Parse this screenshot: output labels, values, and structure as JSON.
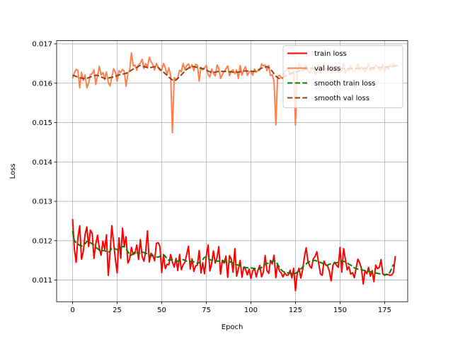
{
  "chart_data": {
    "type": "line",
    "title": "",
    "xlabel": "Epoch",
    "ylabel": "Loss",
    "xlim": [
      -8.95,
      187.95
    ],
    "ylim": [
      0.01045,
      0.01708
    ],
    "xticks": [
      0,
      25,
      50,
      75,
      100,
      125,
      150,
      175
    ],
    "xtick_labels": [
      "0",
      "25",
      "50",
      "75",
      "100",
      "125",
      "150",
      "175"
    ],
    "yticks": [
      0.011,
      0.012,
      0.013,
      0.014,
      0.015,
      0.016,
      0.017
    ],
    "ytick_labels": [
      "0.011",
      "0.012",
      "0.013",
      "0.014",
      "0.015",
      "0.016",
      "0.017"
    ],
    "grid": true,
    "legend_position": "upper right",
    "series": [
      {
        "name": "train loss",
        "color": "#ff0000",
        "style": "solid",
        "x_start": 0,
        "x_step": 1,
        "values": [
          0.01255,
          0.01179,
          0.01145,
          0.01208,
          0.01238,
          0.01153,
          0.01172,
          0.01216,
          0.01235,
          0.01185,
          0.01227,
          0.01218,
          0.01155,
          0.01191,
          0.01214,
          0.01181,
          0.01163,
          0.01199,
          0.01178,
          0.01215,
          0.01112,
          0.01167,
          0.01238,
          0.01195,
          0.01153,
          0.01118,
          0.01207,
          0.01155,
          0.01232,
          0.01186,
          0.0121,
          0.01143,
          0.01153,
          0.01183,
          0.01165,
          0.01168,
          0.01189,
          0.01152,
          0.01203,
          0.0116,
          0.01148,
          0.01173,
          0.01225,
          0.01146,
          0.01168,
          0.01163,
          0.01149,
          0.01193,
          0.01195,
          0.01185,
          0.01119,
          0.01164,
          0.01129,
          0.0114,
          0.01139,
          0.01165,
          0.01145,
          0.01133,
          0.01155,
          0.01124,
          0.01165,
          0.01126,
          0.01139,
          0.01145,
          0.01165,
          0.01186,
          0.01128,
          0.01154,
          0.01122,
          0.01136,
          0.01138,
          0.01175,
          0.01118,
          0.01144,
          0.01116,
          0.01161,
          0.01189,
          0.01123,
          0.01141,
          0.01174,
          0.01143,
          0.01157,
          0.01185,
          0.01115,
          0.0115,
          0.01143,
          0.01161,
          0.01107,
          0.01162,
          0.01153,
          0.0112,
          0.0118,
          0.0111,
          0.01128,
          0.0115,
          0.01107,
          0.01133,
          0.01128,
          0.01113,
          0.01128,
          0.01104,
          0.01123,
          0.0113,
          0.01108,
          0.01126,
          0.01137,
          0.01108,
          0.0112,
          0.01162,
          0.01124,
          0.01117,
          0.0115,
          0.01141,
          0.01163,
          0.01106,
          0.01141,
          0.01123,
          0.01118,
          0.01108,
          0.01118,
          0.01112,
          0.01113,
          0.01125,
          0.01105,
          0.0113,
          0.01073,
          0.01117,
          0.0113,
          0.01105,
          0.01125,
          0.01158,
          0.01182,
          0.01148,
          0.01136,
          0.0113,
          0.01154,
          0.0116,
          0.01172,
          0.01143,
          0.01116,
          0.01112,
          0.01148,
          0.01138,
          0.01136,
          0.01122,
          0.01098,
          0.01137,
          0.01145,
          0.01138,
          0.01132,
          0.01183,
          0.0112,
          0.0118,
          0.01153,
          0.01126,
          0.01134,
          0.01115,
          0.01119,
          0.01106,
          0.0113,
          0.01153,
          0.01144,
          0.0113,
          0.0109,
          0.01124,
          0.01116,
          0.01132,
          0.0111,
          0.01124,
          0.01096,
          0.01138,
          0.01129,
          0.01132,
          0.01152,
          0.01116,
          0.01112,
          0.01115,
          0.01114,
          0.01112,
          0.01113,
          0.0112,
          0.01161
        ]
      },
      {
        "name": "val loss",
        "color": "#ff7f50",
        "style": "solid",
        "x_start": 0,
        "x_step": 1,
        "values": [
          0.01612,
          0.01626,
          0.01635,
          0.01633,
          0.01588,
          0.01628,
          0.01607,
          0.01621,
          0.01588,
          0.016,
          0.01622,
          0.01624,
          0.01634,
          0.01597,
          0.01618,
          0.01643,
          0.01621,
          0.01627,
          0.01609,
          0.01629,
          0.01603,
          0.01593,
          0.01615,
          0.01637,
          0.01628,
          0.01605,
          0.01632,
          0.01627,
          0.01635,
          0.0163,
          0.01592,
          0.01625,
          0.01632,
          0.01677,
          0.01644,
          0.01646,
          0.01633,
          0.01647,
          0.01651,
          0.01661,
          0.01637,
          0.0165,
          0.01639,
          0.01666,
          0.01655,
          0.01647,
          0.01633,
          0.0165,
          0.0164,
          0.01632,
          0.01634,
          0.0165,
          0.01639,
          0.01622,
          0.01639,
          0.0162,
          0.01474,
          0.01614,
          0.0161,
          0.01613,
          0.01633,
          0.01629,
          0.0165,
          0.01634,
          0.01645,
          0.01649,
          0.01638,
          0.01647,
          0.01632,
          0.01648,
          0.01646,
          0.01605,
          0.0164,
          0.01634,
          0.01639,
          0.01645,
          0.01621,
          0.01616,
          0.01636,
          0.01626,
          0.01618,
          0.01646,
          0.01638,
          0.01612,
          0.01622,
          0.0163,
          0.01636,
          0.01644,
          0.01619,
          0.01631,
          0.01634,
          0.01624,
          0.01634,
          0.01612,
          0.01645,
          0.0162,
          0.01634,
          0.01642,
          0.0162,
          0.01628,
          0.01632,
          0.0162,
          0.01636,
          0.01628,
          0.01632,
          0.01633,
          0.01649,
          0.01644,
          0.01646,
          0.01632,
          0.01645,
          0.01619,
          0.01622,
          0.01604,
          0.01494,
          0.01617,
          0.0162,
          0.01614,
          0.01611,
          0.0163,
          0.01633,
          0.01636,
          0.01621,
          0.01626,
          0.0163,
          0.01494,
          0.01622,
          0.01651,
          0.0164,
          0.0163,
          0.01634,
          0.01646,
          0.01631,
          0.01625,
          0.01637,
          0.01642,
          0.01623,
          0.01628,
          0.01647,
          0.01626,
          0.01639,
          0.0165,
          0.0163,
          0.01632,
          0.01641,
          0.01636,
          0.01628,
          0.01632,
          0.01645,
          0.01631,
          0.01627,
          0.01633,
          0.01651,
          0.01626,
          0.01637,
          0.01632,
          0.01645,
          0.01632,
          0.0163,
          0.01634,
          0.01649,
          0.01633,
          0.01641,
          0.01635,
          0.01629,
          0.01637,
          0.0165,
          0.01632,
          0.0164,
          0.01633,
          0.01647,
          0.01642,
          0.01635,
          0.01633,
          0.01648,
          0.0163,
          0.01643,
          0.01635,
          0.01647,
          0.0164,
          0.0165,
          0.01648
        ]
      },
      {
        "name": "smooth train loss",
        "color": "#008000",
        "style": "dashed",
        "x_start": 0,
        "x_step": 1,
        "values": [
          0.01225,
          0.012,
          0.01195,
          0.01192,
          0.01188,
          0.01186,
          0.0119,
          0.01192,
          0.01198,
          0.01199,
          0.01195,
          0.01192,
          0.01188,
          0.01183,
          0.0118,
          0.01176,
          0.01173,
          0.01175,
          0.01175,
          0.01172,
          0.0117,
          0.01174,
          0.0118,
          0.01182,
          0.01179,
          0.01177,
          0.01181,
          0.01183,
          0.01185,
          0.01185,
          0.0118,
          0.01172,
          0.01165,
          0.01163,
          0.01168,
          0.01172,
          0.0117,
          0.01165,
          0.0117,
          0.01171,
          0.0117,
          0.01168,
          0.01167,
          0.01163,
          0.01162,
          0.01161,
          0.0116,
          0.01159,
          0.01158,
          0.0116,
          0.01163,
          0.01165,
          0.0116,
          0.01155,
          0.0115,
          0.01151,
          0.01152,
          0.0115,
          0.01149,
          0.01148,
          0.0115,
          0.01151,
          0.01152,
          0.0115,
          0.01148,
          0.01147,
          0.01147,
          0.01148,
          0.01146,
          0.01145,
          0.01142,
          0.01144,
          0.01148,
          0.01152,
          0.01158,
          0.01158,
          0.01155,
          0.01152,
          0.0115,
          0.01152,
          0.0115,
          0.01148,
          0.01148,
          0.01149,
          0.0115,
          0.01148,
          0.01146,
          0.01148,
          0.01147,
          0.01145,
          0.01143,
          0.01141,
          0.01139,
          0.01138,
          0.01137,
          0.01135,
          0.01133,
          0.01132,
          0.01131,
          0.01131,
          0.01131,
          0.0113,
          0.0113,
          0.01128,
          0.01127,
          0.01128,
          0.01132,
          0.01136,
          0.0114,
          0.01142,
          0.01143,
          0.01145,
          0.01148,
          0.01149,
          0.01148,
          0.0114,
          0.01132,
          0.01126,
          0.01122,
          0.0112,
          0.01119,
          0.01118,
          0.01117,
          0.01116,
          0.01116,
          0.01117,
          0.0112,
          0.01123,
          0.01128,
          0.01133,
          0.01138,
          0.01141,
          0.01145,
          0.01147,
          0.01149,
          0.0115,
          0.0115,
          0.01148,
          0.01146,
          0.01145,
          0.01143,
          0.0114,
          0.01138,
          0.01138,
          0.0114,
          0.01142,
          0.01143,
          0.01144,
          0.01144,
          0.01145,
          0.01146,
          0.01148,
          0.01148,
          0.01146,
          0.01144,
          0.0114,
          0.01138,
          0.01135,
          0.01131,
          0.01129,
          0.01128,
          0.01127,
          0.01126,
          0.01125,
          0.01124,
          0.01123,
          0.01122,
          0.01121,
          0.0112,
          0.01119,
          0.01118,
          0.01117,
          0.01116,
          0.01116,
          0.01115,
          0.01114,
          0.01114,
          0.01113,
          0.0112,
          0.0113,
          0.0114
        ]
      },
      {
        "name": "smooth val loss",
        "color": "#8b4513",
        "style": "dashed",
        "x_start": 0,
        "x_step": 1,
        "values": [
          0.0162,
          0.01619,
          0.01617,
          0.01616,
          0.01614,
          0.01613,
          0.01612,
          0.01611,
          0.01612,
          0.01614,
          0.01616,
          0.01617,
          0.01619,
          0.0162,
          0.0162,
          0.01618,
          0.01616,
          0.01614,
          0.01612,
          0.01613,
          0.01613,
          0.01614,
          0.01615,
          0.01616,
          0.01618,
          0.01619,
          0.01621,
          0.01622,
          0.01623,
          0.01624,
          0.01625,
          0.01628,
          0.0163,
          0.01633,
          0.01636,
          0.01638,
          0.0164,
          0.01643,
          0.01645,
          0.01643,
          0.01642,
          0.01641,
          0.0164,
          0.0164,
          0.0164,
          0.01641,
          0.01642,
          0.01641,
          0.0164,
          0.01636,
          0.01632,
          0.01628,
          0.01624,
          0.0162,
          0.01615,
          0.01612,
          0.01608,
          0.01606,
          0.01608,
          0.01612,
          0.01617,
          0.01621,
          0.01626,
          0.0163,
          0.01635,
          0.01638,
          0.01641,
          0.01642,
          0.01642,
          0.01641,
          0.0164,
          0.01639,
          0.01638,
          0.01637,
          0.01636,
          0.01633,
          0.01631,
          0.01629,
          0.01628,
          0.01627,
          0.01628,
          0.01629,
          0.0163,
          0.0163,
          0.0163,
          0.0163,
          0.0163,
          0.0163,
          0.01629,
          0.01629,
          0.01628,
          0.01628,
          0.01628,
          0.01628,
          0.01629,
          0.0163,
          0.01631,
          0.01631,
          0.01631,
          0.0163,
          0.0163,
          0.0163,
          0.0163,
          0.01631,
          0.01633,
          0.01636,
          0.01638,
          0.0164,
          0.01641,
          0.01642,
          0.0164,
          0.01636,
          0.0163,
          0.01624,
          0.01618,
          0.01614,
          0.01612,
          0.01612,
          0.01614,
          0.01617,
          0.0162,
          0.01622,
          0.01624,
          0.01625,
          0.01627,
          0.01628,
          0.01629,
          0.01631,
          0.01632,
          0.01633,
          0.01635,
          0.01636,
          0.01637,
          0.01638,
          0.01638,
          0.01637,
          0.01636,
          0.01636,
          0.01636,
          0.01636,
          0.01636,
          0.01636,
          0.01636,
          0.01637,
          0.01637,
          0.01637,
          0.01636,
          0.01636,
          0.01636,
          0.01636,
          0.01637,
          0.01637,
          0.01637,
          0.01637,
          0.01637,
          0.01637,
          0.01637,
          0.01637,
          0.01637,
          0.01637,
          0.01637,
          0.01638,
          0.01638,
          0.01638,
          0.01638,
          0.01638,
          0.01638,
          0.01638,
          0.01639,
          0.01639,
          0.01639,
          0.01639,
          0.0164,
          0.0164,
          0.0164,
          0.01641,
          0.01641,
          0.01642,
          0.01642,
          0.01643,
          0.01643,
          0.01644,
          0.01645,
          0.01646
        ]
      }
    ]
  }
}
